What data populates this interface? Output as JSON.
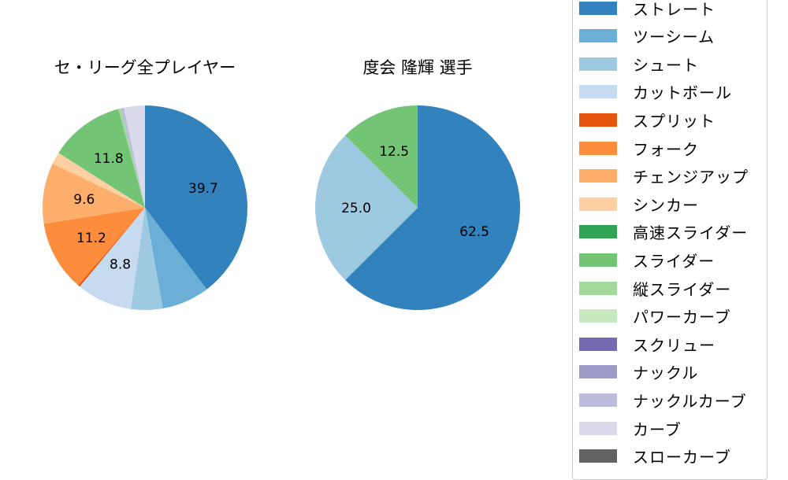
{
  "chart_data": [
    {
      "type": "pie",
      "title": "セ・リーグ全プレイヤー",
      "start_angle": 90,
      "direction": "clockwise",
      "center": [
        184,
        264
      ],
      "radius": 130,
      "categories": [
        "ストレート",
        "ツーシーム",
        "シュート",
        "カットボール",
        "スプリット",
        "フォーク",
        "チェンジアップ",
        "シンカー",
        "スライダー",
        "縦スライダー",
        "ナックルカーブ",
        "カーブ"
      ],
      "values": [
        39.7,
        7.5,
        5.0,
        8.8,
        0.3,
        11.2,
        9.6,
        1.9,
        11.8,
        0.4,
        0.5,
        3.3
      ],
      "colors": [
        "#3182bd",
        "#6baed6",
        "#9ecae1",
        "#c6dbef",
        "#e6550d",
        "#fd8d3c",
        "#fdae6b",
        "#fdd0a2",
        "#74c476",
        "#a1d99b",
        "#bcbddc",
        "#dadaeb"
      ],
      "labels_shown": {
        "0": "39.7",
        "3": "8.8",
        "5": "11.2",
        "6": "9.6",
        "8": "11.8"
      }
    },
    {
      "type": "pie",
      "title": "度会 隆輝  選手",
      "start_angle": 90,
      "direction": "clockwise",
      "center": [
        530,
        264
      ],
      "radius": 130,
      "categories": [
        "ストレート",
        "シュート",
        "スライダー"
      ],
      "values": [
        62.5,
        25.0,
        12.5
      ],
      "colors": [
        "#3182bd",
        "#9ecae1",
        "#74c476"
      ],
      "labels_shown": {
        "0": "62.5",
        "1": "25.0",
        "2": "12.5"
      }
    }
  ],
  "legend": {
    "items": [
      {
        "label": "ストレート",
        "color": "#3182bd"
      },
      {
        "label": "ツーシーム",
        "color": "#6baed6"
      },
      {
        "label": "シュート",
        "color": "#9ecae1"
      },
      {
        "label": "カットボール",
        "color": "#c6dbef"
      },
      {
        "label": "スプリット",
        "color": "#e6550d"
      },
      {
        "label": "フォーク",
        "color": "#fd8d3c"
      },
      {
        "label": "チェンジアップ",
        "color": "#fdae6b"
      },
      {
        "label": "シンカー",
        "color": "#fdd0a2"
      },
      {
        "label": "高速スライダー",
        "color": "#31a354"
      },
      {
        "label": "スライダー",
        "color": "#74c476"
      },
      {
        "label": "縦スライダー",
        "color": "#a1d99b"
      },
      {
        "label": "パワーカーブ",
        "color": "#c7e9c0"
      },
      {
        "label": "スクリュー",
        "color": "#756bb1"
      },
      {
        "label": "ナックル",
        "color": "#9e9ac8"
      },
      {
        "label": "ナックルカーブ",
        "color": "#bcbddc"
      },
      {
        "label": "カーブ",
        "color": "#dadaeb"
      },
      {
        "label": "スローカーブ",
        "color": "#636363"
      }
    ]
  }
}
